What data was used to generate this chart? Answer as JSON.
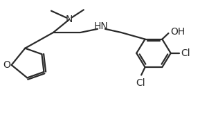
{
  "bg_color": "#ffffff",
  "line_color": "#2a2a2a",
  "line_width": 1.6,
  "text_color": "#2a2a2a",
  "font_size": 10.0,
  "xlim": [
    0,
    10
  ],
  "ylim": [
    0,
    6.5
  ]
}
